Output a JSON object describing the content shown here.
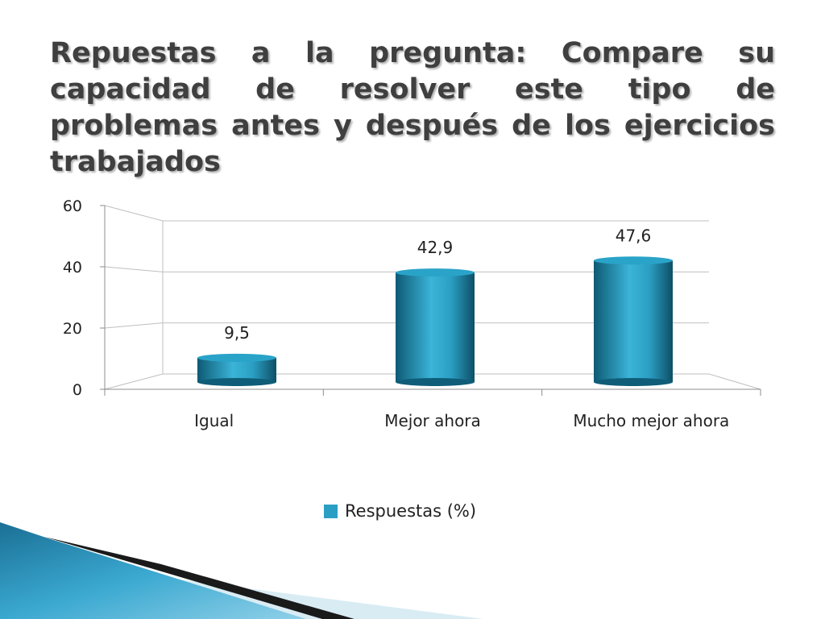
{
  "slide": {
    "title": "Repuestas a la pregunta: Compare su capacidad de resolver este tipo de problemas antes y después de los ejercicios trabajados"
  },
  "chart_data": {
    "type": "bar",
    "categories": [
      "Igual",
      "Mejor ahora",
      "Mucho mejor ahora"
    ],
    "series": [
      {
        "name": "Respuestas (%)",
        "values": [
          9.5,
          42.9,
          47.6
        ],
        "color": "#2b9fc3"
      }
    ],
    "data_labels": [
      "9,5",
      "42,9",
      "47,6"
    ],
    "yticks": [
      0,
      20,
      40,
      60
    ],
    "ylim": [
      0,
      60
    ],
    "grid": true,
    "legend": "bottom-center",
    "style": "3d-cylinder"
  },
  "colors": {
    "bar": "#2b9fc3",
    "bar_dark": "#0d4f66",
    "bar_light": "#5cc9e6",
    "decoration_blue": "#2b8fb8",
    "decoration_dark": "#1a1a1a"
  }
}
